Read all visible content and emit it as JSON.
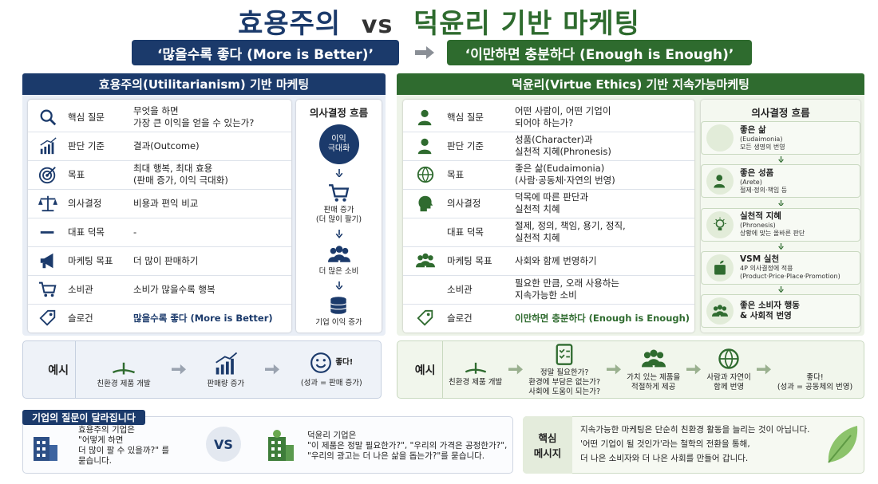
{
  "header": {
    "title_left": "효용주의",
    "title_vs": "vs",
    "title_right": "덕윤리 기반 마케팅",
    "banner_left": "‘많을수록 좋다 (More is Better)’",
    "banner_right": "‘이만하면 충분하다 (Enough is Enough)’"
  },
  "left": {
    "title": "효용주의(Utilitarianism) 기반 마케팅",
    "rows": [
      [
        "핵심 질문",
        "무엇을 하면\n가장 큰 이익을 얻을 수 있는가?"
      ],
      [
        "판단 기준",
        "결과(Outcome)"
      ],
      [
        "목표",
        "최대 행복, 최대 효용\n(판매 증가, 이익 극대화)"
      ],
      [
        "의사결정",
        "비용과 편익 비교"
      ],
      [
        "대표 덕목",
        "-"
      ],
      [
        "마케팅 목표",
        "더 많이 판매하기"
      ],
      [
        "소비관",
        "소비가 많을수록 행복"
      ],
      [
        "슬로건",
        "많을수록 좋다 (More is Better)"
      ]
    ],
    "flow": {
      "title": "의사결정 흐름",
      "steps": [
        "이익\n극대화",
        "판매 증가\n(더 많이 팔기)",
        "더 많은 소비",
        "기업 이익 증가"
      ]
    },
    "example": {
      "label": "예시",
      "items": [
        "친환경 제품 개발",
        "판매량 증가"
      ],
      "result": "좋다!",
      "result_note": "(성과 = 판매 증가)"
    }
  },
  "right": {
    "title": "덕윤리(Virtue Ethics) 기반 지속가능마케팅",
    "rows": [
      [
        "핵심 질문",
        "어떤 사람이, 어떤 기업이\n되어야 하는가?"
      ],
      [
        "판단 기준",
        "성품(Character)과\n실천적 지혜(Phronesis)"
      ],
      [
        "목표",
        "좋은 삶(Eudaimonia)\n(사람·공동체·자연의 번영)"
      ],
      [
        "의사결정",
        "덕목에 따른 판단과\n실천적 치혜"
      ],
      [
        "대표 덕목",
        "절제, 정의, 책임, 용기, 정직,\n실천적 치혜"
      ],
      [
        "마케팅 목표",
        "사회와 함께 번영하기"
      ],
      [
        "소비관",
        "필요한 만큼, 오래 사용하는\n지속가능한 소비"
      ],
      [
        "슬로건",
        "이만하면 충분하다 (Enough is Enough)"
      ]
    ],
    "flow": {
      "title": "의사결정 흐름",
      "steps": [
        {
          "title": "좋은 삶",
          "subtitle": "(Eudaimonia)\n모든 생명의 번영"
        },
        {
          "title": "좋은 성품",
          "subtitle": "(Arete)\n절제·정의·책임 등"
        },
        {
          "title": "실천적 지혜",
          "subtitle": "(Phronesis)\n상황에 맞는 올바른 판단"
        },
        {
          "title": "VSM 실천",
          "subtitle": "4P 의사결정에 적용\n(Product·Price·Place·Promotion)"
        },
        {
          "title": "좋은 소비자 행동\n& 사회적 번영"
        }
      ]
    },
    "example": {
      "label": "예시",
      "items": [
        "친환경 제품 개발",
        "정말 필요한가?\n환경에 부담은 없는가?\n사회에 도움이 되는가?",
        "가치 있는 제품을\n적절하게 제공",
        "사람과 자연이\n함께 번영",
        "좋다!\n(성과 = 공동체의 번영)"
      ]
    }
  },
  "footer": {
    "tag": "기업의 질문이 달라집니다",
    "left_text": "효용주의 기업은\n\"어떻게 하면\n더 많이 팔 수 있을까?\" 를\n묻습니다.",
    "vs": "VS",
    "right_text": "덕윤리 기업은\n\"이 제품은 정말 필요한가?\", \"우리의 가격은 공정한가?\",\n\"우리의 광고는 더 나은 삶을 돕는가?\"를 묻습니다.",
    "key_label": "핵심\n메시지",
    "key_text": "지속가능한 마케팅은 단순히 친환경 활동을 늘리는 것이 아닙니다.\n'어떤 기업이 될 것인가'라는 철학의 전환을 통해,\n더 나은 소비자와 더 나은 사회를 만들어 갑니다."
  }
}
